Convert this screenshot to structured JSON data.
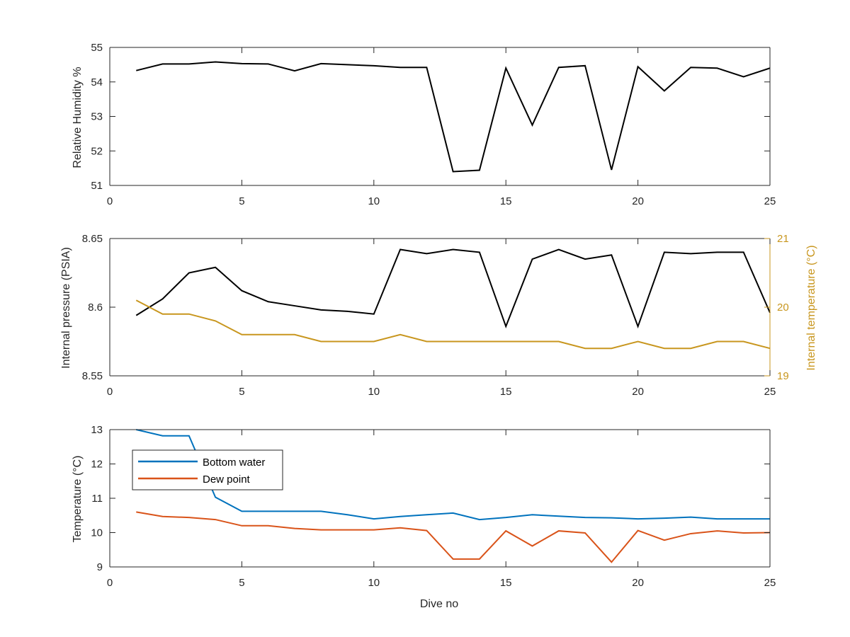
{
  "colors": {
    "black": "#000000",
    "axis": "#262626",
    "gold": "#C8961E",
    "blue": "#0072BD",
    "orange": "#D95319"
  },
  "chart_data": [
    {
      "type": "line",
      "ylabel": "Relative Humidity %",
      "xlim": [
        0,
        25
      ],
      "ylim": [
        51,
        55
      ],
      "xticks": [
        0,
        5,
        10,
        15,
        20,
        25
      ],
      "xtick_labels": [
        "0",
        "5",
        "10",
        "15",
        "20",
        "25"
      ],
      "yticks": [
        51,
        52,
        53,
        54,
        55
      ],
      "ytick_labels": [
        "51",
        "52",
        "53",
        "54",
        "55"
      ],
      "series": [
        {
          "color": "#000000",
          "x": [
            1,
            2,
            3,
            4,
            5,
            6,
            7,
            8,
            9,
            10,
            11,
            12,
            13,
            14,
            15,
            16,
            17,
            18,
            19,
            20,
            21,
            22,
            23,
            24,
            25
          ],
          "y": [
            54.33,
            54.52,
            54.52,
            54.58,
            54.53,
            54.52,
            54.32,
            54.53,
            54.5,
            54.47,
            54.42,
            54.42,
            51.4,
            51.44,
            54.4,
            52.75,
            54.42,
            54.47,
            51.45,
            54.44,
            53.74,
            54.42,
            54.4,
            54.15,
            54.4
          ]
        }
      ]
    },
    {
      "type": "line",
      "ylabel": "Internal pressure (PSIA)",
      "y2label": "Internal temperature (°C)",
      "xlim": [
        0,
        25
      ],
      "ylim": [
        8.55,
        8.65
      ],
      "y2lim": [
        19,
        21
      ],
      "xticks": [
        0,
        5,
        10,
        15,
        20,
        25
      ],
      "xtick_labels": [
        "0",
        "5",
        "10",
        "15",
        "20",
        "25"
      ],
      "yticks": [
        8.55,
        8.6,
        8.65
      ],
      "ytick_labels": [
        "8.55",
        "8.6",
        "8.65"
      ],
      "y2ticks": [
        19,
        20,
        21
      ],
      "y2tick_labels": [
        "19",
        "20",
        "21"
      ],
      "series": [
        {
          "axis": "left",
          "color": "#000000",
          "x": [
            1,
            2,
            3,
            4,
            5,
            6,
            7,
            8,
            9,
            10,
            11,
            12,
            13,
            14,
            15,
            16,
            17,
            18,
            19,
            20,
            21,
            22,
            23,
            24,
            25
          ],
          "y": [
            8.594,
            8.606,
            8.625,
            8.629,
            8.612,
            8.604,
            8.601,
            8.598,
            8.597,
            8.595,
            8.642,
            8.639,
            8.642,
            8.64,
            8.586,
            8.635,
            8.642,
            8.635,
            8.638,
            8.586,
            8.64,
            8.639,
            8.64,
            8.64,
            8.596
          ]
        },
        {
          "axis": "right",
          "color": "#C8961E",
          "x": [
            1,
            2,
            3,
            4,
            5,
            6,
            7,
            8,
            9,
            10,
            11,
            12,
            13,
            14,
            15,
            16,
            17,
            18,
            19,
            20,
            21,
            22,
            23,
            24,
            25
          ],
          "y": [
            20.1,
            19.9,
            19.9,
            19.8,
            19.6,
            19.6,
            19.6,
            19.5,
            19.5,
            19.5,
            19.6,
            19.5,
            19.5,
            19.5,
            19.5,
            19.5,
            19.5,
            19.4,
            19.4,
            19.5,
            19.4,
            19.4,
            19.5,
            19.5,
            19.4
          ]
        }
      ]
    },
    {
      "type": "line",
      "xlabel": "Dive no",
      "ylabel": "Temperature (°C)",
      "xlim": [
        0,
        25
      ],
      "ylim": [
        9,
        13
      ],
      "xticks": [
        0,
        5,
        10,
        15,
        20,
        25
      ],
      "xtick_labels": [
        "0",
        "5",
        "10",
        "15",
        "20",
        "25"
      ],
      "yticks": [
        9,
        10,
        11,
        12,
        13
      ],
      "ytick_labels": [
        "9",
        "10",
        "11",
        "12",
        "13"
      ],
      "legend": "top-left",
      "series": [
        {
          "name": "Bottom water",
          "color": "#0072BD",
          "x": [
            1,
            2,
            3,
            4,
            5,
            6,
            7,
            8,
            9,
            10,
            11,
            12,
            13,
            14,
            15,
            16,
            17,
            18,
            19,
            20,
            21,
            22,
            23,
            24,
            25
          ],
          "y": [
            13.0,
            12.82,
            12.82,
            11.03,
            10.62,
            10.62,
            10.62,
            10.62,
            10.52,
            10.4,
            10.47,
            10.52,
            10.57,
            10.38,
            10.44,
            10.52,
            10.48,
            10.44,
            10.43,
            10.4,
            10.42,
            10.45,
            10.4,
            10.4,
            10.4
          ]
        },
        {
          "name": "Dew point",
          "color": "#D95319",
          "x": [
            1,
            2,
            3,
            4,
            5,
            6,
            7,
            8,
            9,
            10,
            11,
            12,
            13,
            14,
            15,
            16,
            17,
            18,
            19,
            20,
            21,
            22,
            23,
            24,
            25
          ],
          "y": [
            10.6,
            10.47,
            10.44,
            10.38,
            10.2,
            10.2,
            10.12,
            10.08,
            10.08,
            10.08,
            10.14,
            10.06,
            9.23,
            9.23,
            10.05,
            9.61,
            10.05,
            9.99,
            9.14,
            10.06,
            9.78,
            9.97,
            10.05,
            9.99,
            10.0
          ]
        }
      ]
    }
  ]
}
